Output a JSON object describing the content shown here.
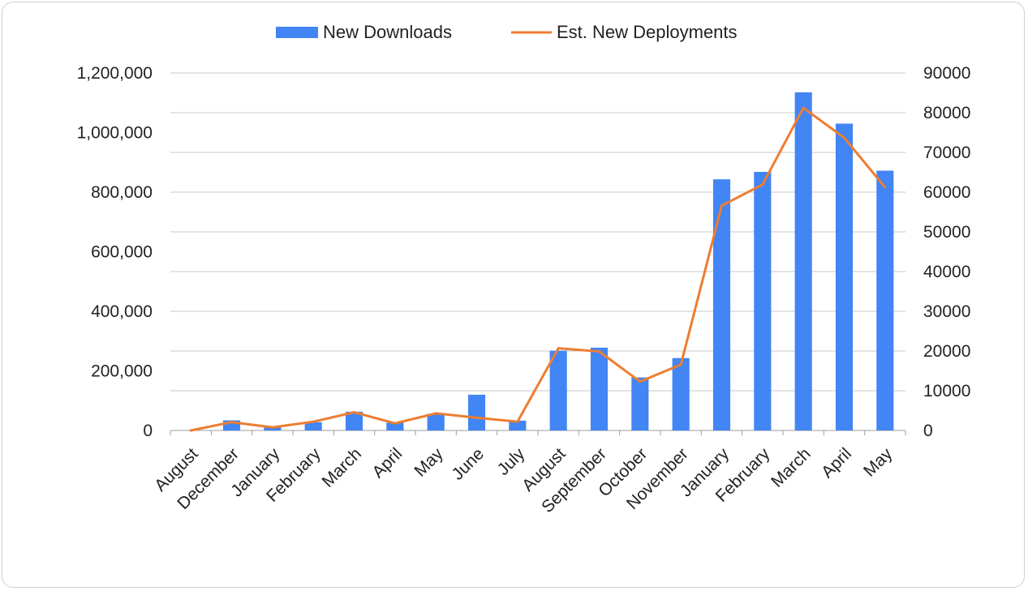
{
  "chart_data": {
    "type": "bar",
    "title": "",
    "categories": [
      "August",
      "December",
      "January",
      "February",
      "March",
      "April",
      "May",
      "June",
      "July",
      "August",
      "September",
      "October",
      "November",
      "January",
      "February",
      "March",
      "April",
      "May"
    ],
    "series": [
      {
        "name": "New Downloads",
        "type": "bar",
        "axis": "left",
        "color": "#4285f4",
        "values": [
          0,
          34000,
          14000,
          28000,
          63000,
          26000,
          56000,
          120000,
          33000,
          268000,
          278000,
          178000,
          243000,
          843000,
          868000,
          1135000,
          1030000,
          872000
        ]
      },
      {
        "name": "Est. New Deployments",
        "type": "line",
        "axis": "right",
        "color": "#ed7d31",
        "values": [
          0,
          2100,
          800,
          2200,
          4600,
          1800,
          4300,
          3200,
          2200,
          20700,
          19900,
          12300,
          16600,
          56600,
          61900,
          81200,
          73700,
          61200
        ]
      }
    ],
    "y_left": {
      "min": 0,
      "max": 1200000,
      "ticks": [
        "0",
        "200,000",
        "400,000",
        "600,000",
        "800,000",
        "1,000,000",
        "1,200,000"
      ]
    },
    "y_right": {
      "min": 0,
      "max": 90000,
      "ticks": [
        "0",
        "10000",
        "20000",
        "30000",
        "40000",
        "50000",
        "60000",
        "70000",
        "80000",
        "90000"
      ]
    },
    "grid": true,
    "legend_position": "top"
  }
}
